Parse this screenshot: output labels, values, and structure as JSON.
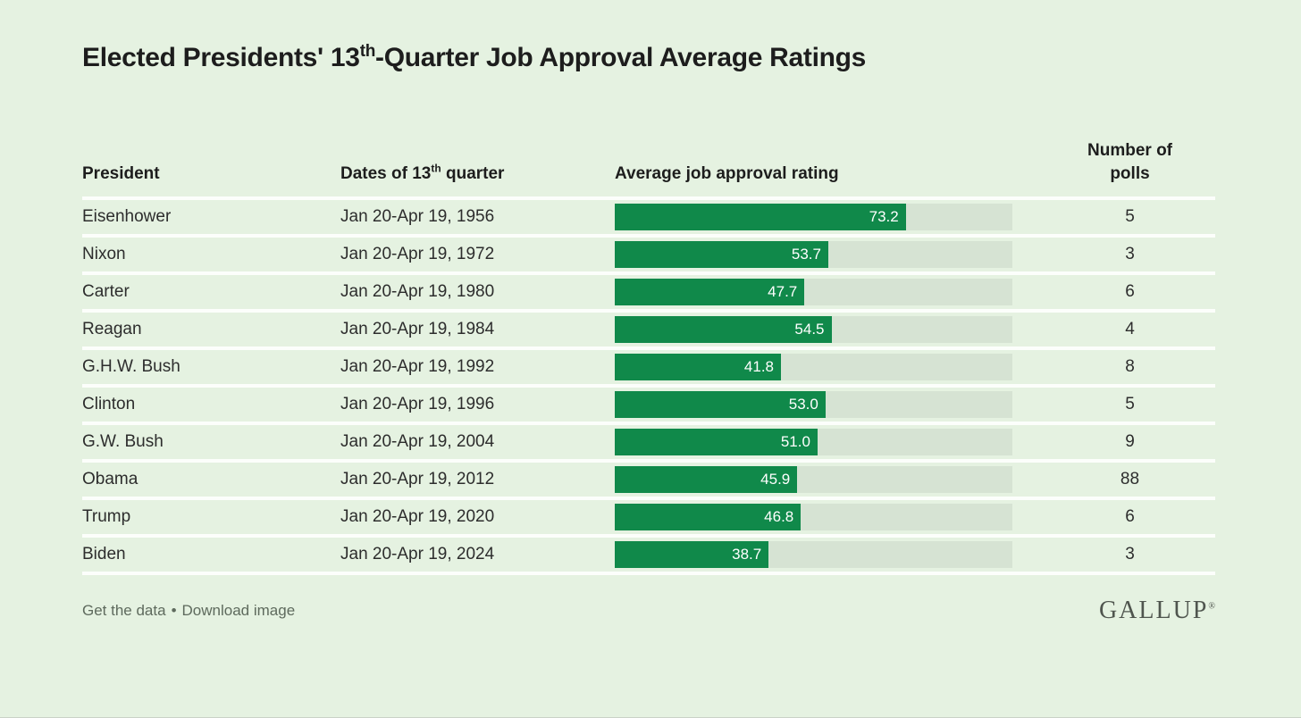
{
  "title": {
    "prefix": "Elected Presidents' 13",
    "superscript": "th",
    "suffix": "-Quarter Job Approval Average Ratings"
  },
  "columns": {
    "president": "President",
    "dates_prefix": "Dates of 13",
    "dates_sup": "th",
    "dates_suffix": " quarter",
    "rating": "Average job approval rating",
    "polls_line1": "Number of",
    "polls_line2": "polls"
  },
  "rows": [
    {
      "president": "Eisenhower",
      "dates": "Jan 20-Apr 19, 1956",
      "rating": 73.2,
      "rating_label": "73.2",
      "polls": "5"
    },
    {
      "president": "Nixon",
      "dates": "Jan 20-Apr 19, 1972",
      "rating": 53.7,
      "rating_label": "53.7",
      "polls": "3"
    },
    {
      "president": "Carter",
      "dates": "Jan 20-Apr 19, 1980",
      "rating": 47.7,
      "rating_label": "47.7",
      "polls": "6"
    },
    {
      "president": "Reagan",
      "dates": "Jan 20-Apr 19, 1984",
      "rating": 54.5,
      "rating_label": "54.5",
      "polls": "4"
    },
    {
      "president": "G.H.W. Bush",
      "dates": "Jan 20-Apr 19, 1992",
      "rating": 41.8,
      "rating_label": "41.8",
      "polls": "8"
    },
    {
      "president": "Clinton",
      "dates": "Jan 20-Apr 19, 1996",
      "rating": 53.0,
      "rating_label": "53.0",
      "polls": "5"
    },
    {
      "president": "G.W. Bush",
      "dates": "Jan 20-Apr 19, 2004",
      "rating": 51.0,
      "rating_label": "51.0",
      "polls": "9"
    },
    {
      "president": "Obama",
      "dates": "Jan 20-Apr 19, 2012",
      "rating": 45.9,
      "rating_label": "45.9",
      "polls": "88"
    },
    {
      "president": "Trump",
      "dates": "Jan 20-Apr 19, 2020",
      "rating": 46.8,
      "rating_label": "46.8",
      "polls": "6"
    },
    {
      "president": "Biden",
      "dates": "Jan 20-Apr 19, 2024",
      "rating": 38.7,
      "rating_label": "38.7",
      "polls": "3"
    }
  ],
  "footer": {
    "link1": "Get the data",
    "separator": "•",
    "link2": "Download image",
    "logo": "GALLUP",
    "logo_mark": "®"
  },
  "colors": {
    "background": "#e5f2e1",
    "bar_fill": "#10894a",
    "bar_track": "#d6e3d3",
    "separator": "#fcfefb",
    "title_text": "#1d1d1d",
    "body_text": "#2d2d2d",
    "footer_text": "#5e6a5d"
  },
  "chart_data": {
    "type": "bar",
    "orientation": "horizontal",
    "title": "Elected Presidents' 13th-Quarter Job Approval Average Ratings",
    "categories": [
      "Eisenhower",
      "Nixon",
      "Carter",
      "Reagan",
      "G.H.W. Bush",
      "Clinton",
      "G.W. Bush",
      "Obama",
      "Trump",
      "Biden"
    ],
    "x_dates": [
      "Jan 20-Apr 19, 1956",
      "Jan 20-Apr 19, 1972",
      "Jan 20-Apr 19, 1980",
      "Jan 20-Apr 19, 1984",
      "Jan 20-Apr 19, 1992",
      "Jan 20-Apr 19, 1996",
      "Jan 20-Apr 19, 2004",
      "Jan 20-Apr 19, 2012",
      "Jan 20-Apr 19, 2020",
      "Jan 20-Apr 19, 2024"
    ],
    "series": [
      {
        "name": "Average job approval rating",
        "values": [
          73.2,
          53.7,
          47.7,
          54.5,
          41.8,
          53.0,
          51.0,
          45.9,
          46.8,
          38.7
        ]
      },
      {
        "name": "Number of polls",
        "values": [
          5,
          3,
          6,
          4,
          8,
          5,
          9,
          88,
          6,
          3
        ]
      }
    ],
    "xlim": [
      0,
      100
    ],
    "grid": false,
    "legend": false,
    "bar_color": "#10894a",
    "track_color": "#d6e3d3"
  }
}
